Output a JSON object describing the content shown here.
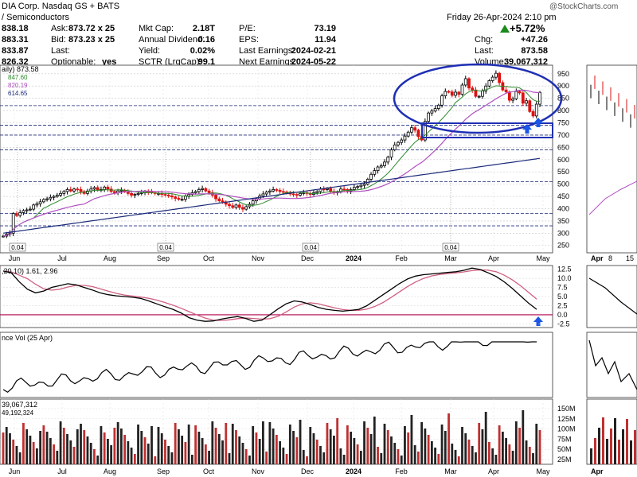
{
  "header": {
    "title": "DIA Corp. Nasdaq GS + BATS",
    "subtitle": "/ Semiconductors",
    "date_time": "Friday 26-Apr-2024 2:10 pm",
    "watermark": "@StockCharts.com",
    "change_pct": "+5.72%",
    "up_color": "#1a8a1a",
    "rows": [
      {
        "l1": "",
        "v1": "838.18",
        "l2": "Ask:",
        "v2": "873.72 x 25",
        "l3": "Mkt Cap:",
        "v3": "2.18T",
        "l4": "P/E:",
        "v4": "73.19",
        "l5": "",
        "v5": ""
      },
      {
        "l1": "",
        "v1": "883.31",
        "l2": "Bid:",
        "v2": "873.23 x 25",
        "l3": "Annual Dividend:",
        "v3": "0.16",
        "l4": "EPS:",
        "v4": "11.94",
        "l5": "Chg:",
        "v5": "+47.26"
      },
      {
        "l1": "",
        "v1": "833.87",
        "l2": "Last:",
        "v2": "",
        "l3": "Yield:",
        "v3": "0.02%",
        "l4": "Last Earnings:",
        "v4": "2024-02-21",
        "l5": "Last:",
        "v5": "873.58"
      },
      {
        "l1": "",
        "v1": "826.32",
        "l2": "Optionable:",
        "v2": "yes",
        "l3": "SCTR (LrgCap):",
        "v3": "99.1",
        "l4": "Next Earnings:",
        "v4": "2024-05-22",
        "l5": "Volume:",
        "v5": "39,067,312"
      }
    ]
  },
  "price_legend": [
    "aily) 873.58",
    "847.60",
    "820.19",
    "614.65"
  ],
  "indicator_labels": {
    "macd": ",20,10) 1.61, 2.96",
    "relvol": "nce Vol (25 Apr)",
    "vol1": "39,067,312",
    "vol2": "49,192,324"
  },
  "annotations": {
    "ellipse_color": "#1f2fb4",
    "arrow_color": "#1a56e6",
    "dividend_label": "0.04"
  },
  "chart_data": {
    "type": "line",
    "series_type": "candlestick",
    "x_labels": [
      "Jun",
      "Jul",
      "Aug",
      "Sep",
      "Oct",
      "Nov",
      "Dec",
      "2024",
      "Feb",
      "Mar",
      "Apr",
      "May"
    ],
    "price_axis": {
      "ticks": [
        250,
        300,
        350,
        400,
        450,
        500,
        550,
        600,
        650,
        700,
        750,
        800,
        850,
        900,
        950
      ],
      "ylim": [
        220,
        985
      ]
    },
    "price_close": [
      288,
      296,
      300,
      380,
      372,
      384,
      392,
      395,
      398,
      415,
      420,
      428,
      437,
      440,
      446,
      450,
      455,
      462,
      470,
      478,
      472,
      480,
      478,
      470,
      462,
      472,
      480,
      486,
      475,
      478,
      488,
      480,
      470,
      465,
      472,
      475,
      470,
      462,
      455,
      458,
      462,
      465,
      470,
      468,
      465,
      462,
      462,
      458,
      455,
      452,
      448,
      442,
      438,
      438,
      452,
      458,
      465,
      470,
      478,
      482,
      472,
      465,
      455,
      440,
      432,
      428,
      418,
      412,
      405,
      415,
      405,
      398,
      408,
      418,
      432,
      440,
      452,
      460,
      468,
      472,
      478,
      475,
      470,
      468,
      464,
      460,
      458,
      455,
      462,
      465,
      462,
      458,
      465,
      470,
      480,
      478,
      482,
      470,
      466,
      468,
      480,
      478,
      472,
      478,
      487,
      490,
      495,
      500,
      520,
      540,
      555,
      570,
      575,
      590,
      610,
      640,
      660,
      670,
      680,
      696,
      712,
      730,
      720,
      694,
      680,
      756,
      790,
      798,
      808,
      822,
      860,
      878,
      876,
      862,
      875,
      866,
      904,
      930,
      892,
      884,
      858,
      858,
      880,
      900,
      922,
      936,
      952,
      914,
      884,
      876,
      842,
      848,
      878,
      872,
      830,
      840,
      796,
      778,
      826,
      874
    ],
    "ma_short": "green moving average",
    "ma_mid": "magenta moving average",
    "ma_long": "blue moving average",
    "macd_axis": {
      "ticks": [
        12.5,
        10.0,
        7.5,
        5.0,
        2.5,
        0.0,
        -2.5
      ]
    },
    "volume_axis": {
      "ticks": [
        "150M",
        "125M",
        "100M",
        "75M",
        "50M",
        "25M"
      ]
    },
    "right_panel_labels": [
      "Apr",
      "8",
      "15"
    ],
    "right_volume_label": "Apr"
  }
}
